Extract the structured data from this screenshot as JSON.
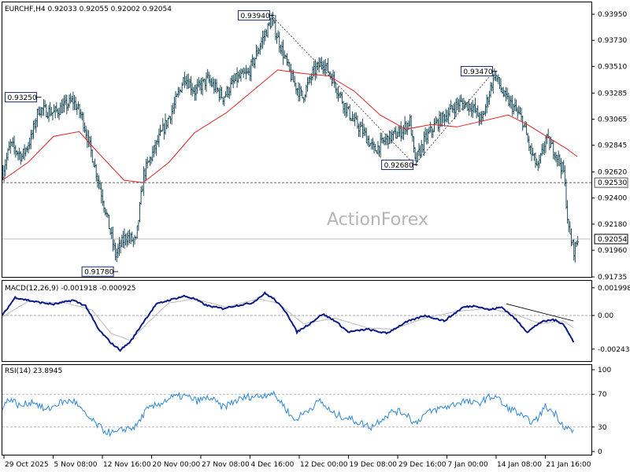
{
  "chart_data": {
    "type": "candlestick",
    "symbol_header": "EURCHF,H4  0.92033 0.92055 0.92002 0.92054",
    "watermark": "ActionForex",
    "price_axis_ticks": [
      "0.93950",
      "0.93730",
      "0.93510",
      "0.93285",
      "0.93065",
      "0.92845",
      "0.92620",
      "0.92400",
      "0.92180",
      "0.91960",
      "0.91735"
    ],
    "price_axis_values": [
      0.9395,
      0.9373,
      0.9351,
      0.93285,
      0.93065,
      0.92845,
      0.9262,
      0.924,
      0.9218,
      0.9196,
      0.91735
    ],
    "current_price_label": "0.92054",
    "current_price": 0.92054,
    "support_level_label": "0.92530",
    "support_level": 0.9253,
    "price_annotations": [
      {
        "label": "0.93250",
        "value": 0.9325,
        "time_index": 28
      },
      {
        "label": "0.91780",
        "value": 0.9178,
        "time_index": 88
      },
      {
        "label": "0.93940",
        "value": 0.9394,
        "time_index": 210
      },
      {
        "label": "0.92680",
        "value": 0.9268,
        "time_index": 322
      },
      {
        "label": "0.93470",
        "value": 0.9347,
        "time_index": 384
      }
    ],
    "time_labels": [
      "29 Oct 2025",
      "5 Nov 08:00",
      "12 Nov 16:00",
      "20 Nov 00:00",
      "27 Nov 08:00",
      "4 Dec 16:00",
      "12 Dec 00:00",
      "19 Dec 08:00",
      "29 Dec 16:00",
      "7 Jan 00:00",
      "14 Jan 08:00",
      "21 Jan 16:00"
    ],
    "price_path": [
      [
        0,
        0.9262
      ],
      [
        6,
        0.9285
      ],
      [
        15,
        0.9275
      ],
      [
        22,
        0.929
      ],
      [
        28,
        0.9315
      ],
      [
        40,
        0.9312
      ],
      [
        55,
        0.9322
      ],
      [
        62,
        0.9308
      ],
      [
        70,
        0.9275
      ],
      [
        78,
        0.924
      ],
      [
        88,
        0.9192
      ],
      [
        96,
        0.9208
      ],
      [
        104,
        0.9203
      ],
      [
        110,
        0.926
      ],
      [
        122,
        0.929
      ],
      [
        134,
        0.9318
      ],
      [
        142,
        0.9343
      ],
      [
        150,
        0.933
      ],
      [
        160,
        0.934
      ],
      [
        172,
        0.9325
      ],
      [
        182,
        0.934
      ],
      [
        192,
        0.9345
      ],
      [
        202,
        0.9372
      ],
      [
        210,
        0.939
      ],
      [
        218,
        0.9365
      ],
      [
        226,
        0.934
      ],
      [
        234,
        0.9325
      ],
      [
        242,
        0.9345
      ],
      [
        250,
        0.9355
      ],
      [
        258,
        0.934
      ],
      [
        266,
        0.932
      ],
      [
        274,
        0.9305
      ],
      [
        282,
        0.9295
      ],
      [
        290,
        0.928
      ],
      [
        300,
        0.929
      ],
      [
        310,
        0.9295
      ],
      [
        318,
        0.9305
      ],
      [
        322,
        0.927
      ],
      [
        330,
        0.929
      ],
      [
        338,
        0.9302
      ],
      [
        346,
        0.931
      ],
      [
        356,
        0.932
      ],
      [
        366,
        0.9318
      ],
      [
        374,
        0.9305
      ],
      [
        384,
        0.9345
      ],
      [
        392,
        0.9325
      ],
      [
        400,
        0.9315
      ],
      [
        406,
        0.9305
      ],
      [
        412,
        0.928
      ],
      [
        418,
        0.9265
      ],
      [
        424,
        0.929
      ],
      [
        432,
        0.9278
      ],
      [
        438,
        0.9262
      ],
      [
        442,
        0.9212
      ],
      [
        446,
        0.9196
      ],
      [
        449,
        0.9205
      ]
    ],
    "ma_path": [
      [
        0,
        0.9255
      ],
      [
        20,
        0.927
      ],
      [
        40,
        0.9292
      ],
      [
        60,
        0.9296
      ],
      [
        75,
        0.9278
      ],
      [
        95,
        0.9255
      ],
      [
        110,
        0.9253
      ],
      [
        130,
        0.927
      ],
      [
        150,
        0.9295
      ],
      [
        175,
        0.9312
      ],
      [
        195,
        0.933
      ],
      [
        215,
        0.9348
      ],
      [
        235,
        0.9345
      ],
      [
        255,
        0.9343
      ],
      [
        275,
        0.933
      ],
      [
        295,
        0.931
      ],
      [
        315,
        0.9298
      ],
      [
        335,
        0.9302
      ],
      [
        355,
        0.93
      ],
      [
        375,
        0.9305
      ],
      [
        395,
        0.931
      ],
      [
        410,
        0.9302
      ],
      [
        425,
        0.9292
      ],
      [
        440,
        0.9282
      ],
      [
        449,
        0.9275
      ]
    ],
    "trend_lines": [
      {
        "from": [
          210,
          0.9394
        ],
        "to": [
          322,
          0.9268
        ],
        "style": "dashed"
      },
      {
        "from": [
          322,
          0.9268
        ],
        "to": [
          384,
          0.9347
        ],
        "style": "dashed"
      }
    ],
    "macd": {
      "label": "MACD(12,26,9) -0.001918 -0.000925",
      "axis_ticks": [
        "0.001998",
        "0.00",
        "-0.002434"
      ],
      "axis_values": [
        0.001998,
        0.0,
        -0.002434
      ],
      "zero_label": "0.00",
      "main_path": [
        [
          0,
          0.0
        ],
        [
          10,
          0.0013
        ],
        [
          25,
          0.001
        ],
        [
          40,
          0.0008
        ],
        [
          55,
          0.0011
        ],
        [
          65,
          0.0007
        ],
        [
          75,
          -0.001
        ],
        [
          85,
          -0.002
        ],
        [
          92,
          -0.0025
        ],
        [
          100,
          -0.0019
        ],
        [
          110,
          -0.0005
        ],
        [
          120,
          0.0008
        ],
        [
          130,
          0.0011
        ],
        [
          142,
          0.0014
        ],
        [
          150,
          0.0012
        ],
        [
          160,
          0.0007
        ],
        [
          172,
          0.0005
        ],
        [
          182,
          0.0007
        ],
        [
          195,
          0.0009
        ],
        [
          205,
          0.0016
        ],
        [
          212,
          0.0012
        ],
        [
          222,
          0.0002
        ],
        [
          230,
          -0.0012
        ],
        [
          240,
          -0.0006
        ],
        [
          250,
          0.0001
        ],
        [
          260,
          -0.0004
        ],
        [
          270,
          -0.0012
        ],
        [
          285,
          -0.001
        ],
        [
          300,
          -0.0013
        ],
        [
          315,
          -0.0005
        ],
        [
          330,
          0.0
        ],
        [
          345,
          -0.0004
        ],
        [
          360,
          0.0006
        ],
        [
          370,
          0.0007
        ],
        [
          380,
          0.0004
        ],
        [
          390,
          0.0006
        ],
        [
          400,
          -0.0002
        ],
        [
          410,
          -0.0012
        ],
        [
          420,
          -0.0005
        ],
        [
          430,
          -0.0003
        ],
        [
          438,
          -0.0006
        ],
        [
          446,
          -0.0019
        ]
      ],
      "signal_path": [
        [
          0,
          -0.0001
        ],
        [
          20,
          0.001
        ],
        [
          50,
          0.0009
        ],
        [
          70,
          0.0004
        ],
        [
          85,
          -0.0013
        ],
        [
          100,
          -0.0018
        ],
        [
          115,
          -0.0004
        ],
        [
          130,
          0.0009
        ],
        [
          150,
          0.0012
        ],
        [
          175,
          0.0006
        ],
        [
          200,
          0.0012
        ],
        [
          215,
          0.0009
        ],
        [
          235,
          -0.0006
        ],
        [
          260,
          -0.0002
        ],
        [
          285,
          -0.0009
        ],
        [
          305,
          -0.001
        ],
        [
          330,
          -0.0002
        ],
        [
          355,
          0.0003
        ],
        [
          380,
          0.0005
        ],
        [
          400,
          0.0001
        ],
        [
          420,
          -0.0006
        ],
        [
          438,
          -0.0004
        ],
        [
          446,
          -0.0009
        ]
      ],
      "trend_line": {
        "from": [
          375,
          0.0009
        ],
        "to": [
          446,
          -0.0004
        ]
      }
    },
    "rsi": {
      "label": "RSI(14) 23.8945",
      "axis_ticks": [
        "100",
        "70",
        "30",
        "0"
      ],
      "axis_values": [
        100,
        70,
        30,
        0
      ],
      "path": [
        [
          0,
          55
        ],
        [
          6,
          65
        ],
        [
          14,
          55
        ],
        [
          24,
          62
        ],
        [
          34,
          50
        ],
        [
          45,
          60
        ],
        [
          56,
          62
        ],
        [
          64,
          46
        ],
        [
          72,
          35
        ],
        [
          80,
          25
        ],
        [
          88,
          22
        ],
        [
          96,
          28
        ],
        [
          104,
          30
        ],
        [
          112,
          50
        ],
        [
          122,
          58
        ],
        [
          132,
          66
        ],
        [
          142,
          68
        ],
        [
          152,
          62
        ],
        [
          162,
          66
        ],
        [
          172,
          54
        ],
        [
          182,
          62
        ],
        [
          192,
          67
        ],
        [
          202,
          68
        ],
        [
          210,
          72
        ],
        [
          218,
          60
        ],
        [
          228,
          38
        ],
        [
          238,
          50
        ],
        [
          248,
          62
        ],
        [
          258,
          46
        ],
        [
          268,
          42
        ],
        [
          278,
          36
        ],
        [
          288,
          30
        ],
        [
          296,
          40
        ],
        [
          306,
          50
        ],
        [
          316,
          46
        ],
        [
          322,
          34
        ],
        [
          330,
          46
        ],
        [
          340,
          52
        ],
        [
          350,
          56
        ],
        [
          360,
          62
        ],
        [
          370,
          58
        ],
        [
          380,
          66
        ],
        [
          386,
          68
        ],
        [
          392,
          55
        ],
        [
          400,
          50
        ],
        [
          408,
          40
        ],
        [
          416,
          36
        ],
        [
          424,
          55
        ],
        [
          432,
          46
        ],
        [
          438,
          32
        ],
        [
          446,
          24
        ]
      ]
    },
    "x_range": [
      0,
      460
    ],
    "ylim": [
      0.91735,
      0.9405
    ]
  }
}
